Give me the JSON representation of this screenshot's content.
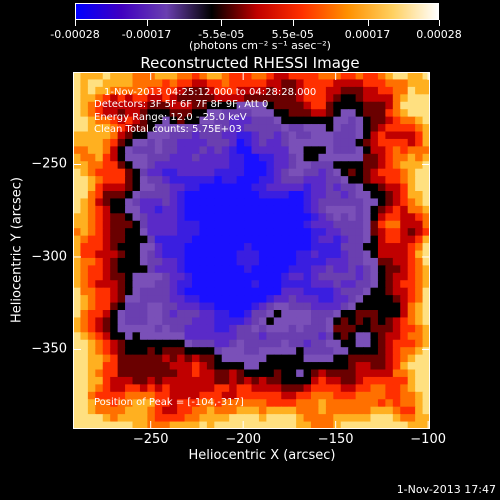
{
  "colorbar": {
    "tick_labels": [
      "-0.00028",
      "-0.00017",
      "-5.5e-05",
      "5.5e-05",
      "0.00017",
      "0.00028"
    ],
    "units": "(photons cm⁻² s⁻¹ asec⁻²)"
  },
  "annotations": {
    "time_range": "1-Nov-2013 04:25:12.000 to 04:28:28.000",
    "detectors": "Detectors: 3F 5F 6F 7F 8F 9F, Att 0",
    "energy": "Energy Range: 12.0 - 25.0 keV",
    "clean": "Clean     Total counts: 5.75E+03",
    "peak": "Position of Peak = [-104,-317]"
  },
  "timestamp": "1-Nov-2013 17:47",
  "chart_data": {
    "type": "heatmap",
    "title": "Reconstructed RHESSI Image",
    "xlabel": "Heliocentric X (arcsec)",
    "ylabel": "Heliocentric Y (arcsec)",
    "xlim": [
      -292,
      -99
    ],
    "ylim": [
      -393,
      -200
    ],
    "x_ticks": [
      -250,
      -200,
      -150,
      -100
    ],
    "y_ticks": [
      -250,
      -300,
      -350
    ],
    "colorbar_range": [
      -0.00028,
      0.00028
    ],
    "colormap": [
      "#0000ff",
      "#4000c0",
      "#6a3fb0",
      "#000000",
      "#c00000",
      "#ff3000",
      "#ff9000",
      "#ffd060",
      "#ffffff"
    ],
    "peak_position": [
      -104,
      -317
    ],
    "grid": false
  }
}
